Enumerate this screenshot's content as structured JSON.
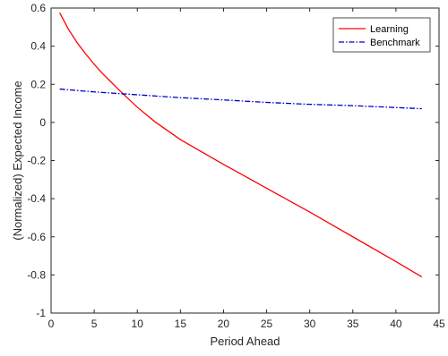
{
  "chart_data": {
    "type": "line",
    "title": "",
    "xlabel": "Period Ahead",
    "ylabel": "(Normalized) Expected Income",
    "xlim": [
      0,
      45
    ],
    "ylim": [
      -1,
      0.6
    ],
    "xticks": [
      0,
      5,
      10,
      15,
      20,
      25,
      30,
      35,
      40,
      45
    ],
    "yticks": [
      -1,
      -0.8,
      -0.6,
      -0.4,
      -0.2,
      0,
      0.2,
      0.4,
      0.6
    ],
    "xtick_labels": [
      "0",
      "5",
      "10",
      "15",
      "20",
      "25",
      "30",
      "35",
      "40",
      "45"
    ],
    "ytick_labels": [
      "-1",
      "-0.8",
      "-0.6",
      "-0.4",
      "-0.2",
      "0",
      "0.2",
      "0.4",
      "0.6"
    ],
    "grid": false,
    "legend_position": "top-right",
    "series": [
      {
        "name": "Learning",
        "color": "#ff0000",
        "style": "solid",
        "x": [
          1,
          2,
          3,
          4,
          5,
          6,
          7,
          8,
          10,
          12,
          15,
          20,
          25,
          30,
          35,
          40,
          43
        ],
        "y": [
          0.575,
          0.49,
          0.42,
          0.36,
          0.305,
          0.255,
          0.21,
          0.165,
          0.08,
          0.005,
          -0.09,
          -0.22,
          -0.345,
          -0.47,
          -0.6,
          -0.73,
          -0.81
        ]
      },
      {
        "name": "Benchmark",
        "color": "#0000cc",
        "style": "dashdot",
        "x": [
          1,
          5,
          10,
          15,
          20,
          25,
          30,
          35,
          40,
          43
        ],
        "y": [
          0.175,
          0.16,
          0.145,
          0.13,
          0.118,
          0.105,
          0.095,
          0.088,
          0.078,
          0.072
        ]
      }
    ]
  }
}
